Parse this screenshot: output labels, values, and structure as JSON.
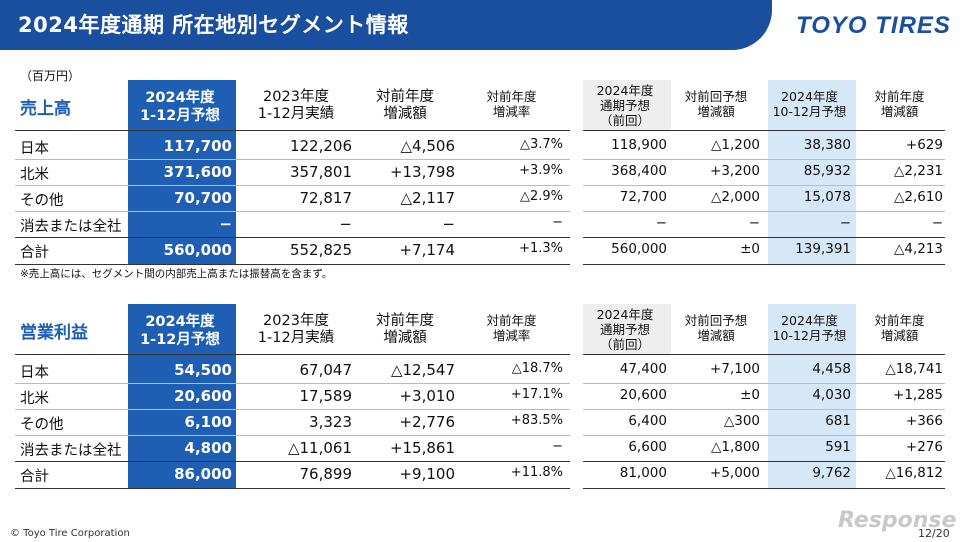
{
  "header": {
    "title": "2024年度通期 所在地別セグメント情報",
    "logo": "TOYO TIRES"
  },
  "unit": "（百万円）",
  "columns": {
    "forecast_2024": [
      "2024年度",
      "1-12月予想"
    ],
    "actual_2023": [
      "2023年度",
      "1-12月実績"
    ],
    "yoy_diff": [
      "対前年度",
      "増減額"
    ],
    "yoy_rate": [
      "対前年度",
      "増減率"
    ],
    "prev_forecast": [
      "2024年度",
      "通期予想",
      "（前回）"
    ],
    "vs_prev_diff": [
      "対前回予想",
      "増減額"
    ],
    "q4_forecast": [
      "2024年度",
      "10-12月予想"
    ],
    "q4_yoy": [
      "対前年度",
      "増減額"
    ]
  },
  "sales": {
    "title": "売上高",
    "rows": [
      {
        "label": "日本",
        "v": [
          "117,700",
          "122,206",
          "△4,506",
          "△3.7%",
          "118,900",
          "△1,200",
          "38,380",
          "+629"
        ]
      },
      {
        "label": "北米",
        "v": [
          "371,600",
          "357,801",
          "+13,798",
          "+3.9%",
          "368,400",
          "+3,200",
          "85,932",
          "△2,231"
        ]
      },
      {
        "label": "その他",
        "v": [
          "70,700",
          "72,817",
          "△2,117",
          "△2.9%",
          "72,700",
          "△2,000",
          "15,078",
          "△2,610"
        ]
      },
      {
        "label": "消去または全社",
        "v": [
          "−",
          "−",
          "−",
          "−",
          "−",
          "−",
          "−",
          "−"
        ]
      },
      {
        "label": "合計",
        "v": [
          "560,000",
          "552,825",
          "+7,174",
          "+1.3%",
          "560,000",
          "±0",
          "139,391",
          "△4,213"
        ]
      }
    ],
    "note": "※売上高には、セグメント間の内部売上高または振替高を含まず。"
  },
  "profit": {
    "title": "営業利益",
    "rows": [
      {
        "label": "日本",
        "v": [
          "54,500",
          "67,047",
          "△12,547",
          "△18.7%",
          "47,400",
          "+7,100",
          "4,458",
          "△18,741"
        ]
      },
      {
        "label": "北米",
        "v": [
          "20,600",
          "17,589",
          "+3,010",
          "+17.1%",
          "20,600",
          "±0",
          "4,030",
          "+1,285"
        ]
      },
      {
        "label": "その他",
        "v": [
          "6,100",
          "3,323",
          "+2,776",
          "+83.5%",
          "6,400",
          "△300",
          "681",
          "+366"
        ]
      },
      {
        "label": "消去または全社",
        "v": [
          "4,800",
          "△11,061",
          "+15,861",
          "−",
          "6,600",
          "△1,800",
          "591",
          "+276"
        ]
      },
      {
        "label": "合計",
        "v": [
          "86,000",
          "76,899",
          "+9,100",
          "+11.8%",
          "81,000",
          "+5,000",
          "9,762",
          "△16,812"
        ]
      }
    ]
  },
  "footer": {
    "copyright": "© Toyo Tire Corporation",
    "page": "12/20",
    "watermark": "Response"
  },
  "colors": {
    "brand": "#1a4fa0",
    "highlight": "#1e5fb4",
    "prev_bg": "#eeeeee",
    "q4_bg": "#d6e8f8"
  }
}
